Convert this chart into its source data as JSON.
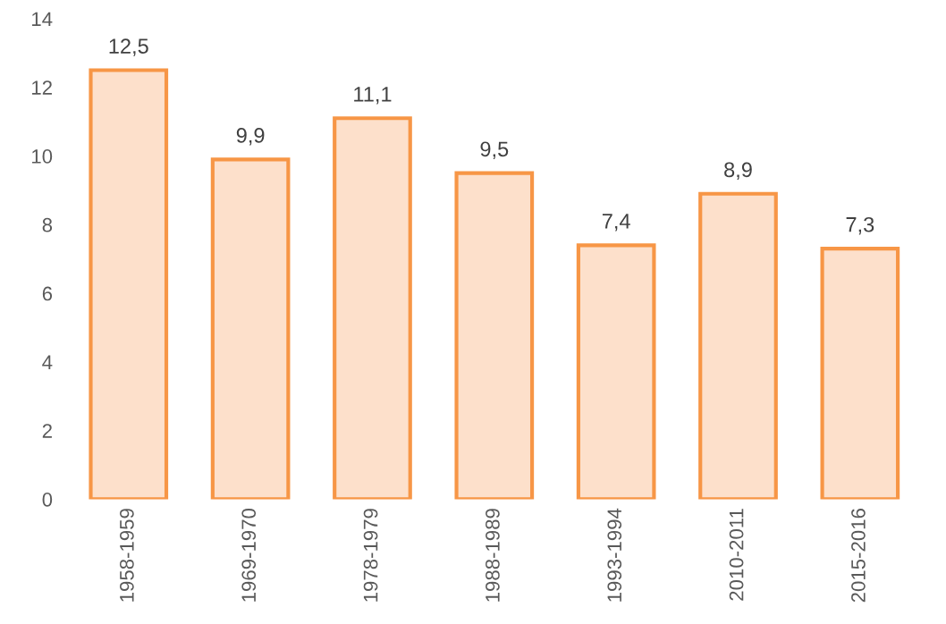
{
  "chart_data": {
    "type": "bar",
    "categories": [
      "1958-1959",
      "1969-1970",
      "1978-1979",
      "1988-1989",
      "1993-1994",
      "2010-2011",
      "2015-2016"
    ],
    "values": [
      12.5,
      9.9,
      11.1,
      9.5,
      7.4,
      8.9,
      7.3
    ],
    "value_labels": [
      "12,5",
      "9,9",
      "11,1",
      "9,5",
      "7,4",
      "8,9",
      "7,3"
    ],
    "color": "#fde0cb",
    "ylim": [
      0,
      14
    ],
    "yticks": [
      0,
      2,
      4,
      6,
      8,
      10,
      12,
      14
    ],
    "grid": false,
    "legend": false
  }
}
